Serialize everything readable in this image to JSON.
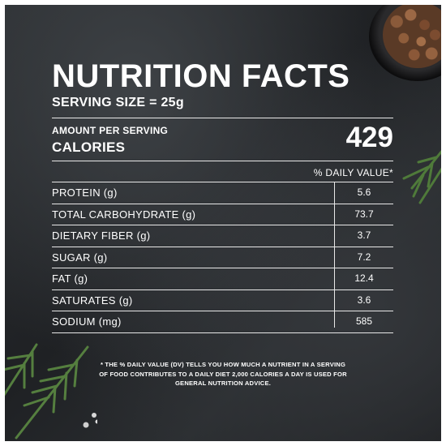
{
  "title": "NUTRITION FACTS",
  "serving_size": "SERVING SIZE = 25g",
  "amount_per_serving": "AMOUNT PER SERVING",
  "calories_label": "CALORIES",
  "calories_value": "429",
  "dv_header": "% DAILY VALUE*",
  "nutrients": [
    {
      "name": "PROTEIN (g)",
      "value": "5.6"
    },
    {
      "name": "TOTAL CARBOHYDRATE (g)",
      "value": "73.7"
    },
    {
      "name": "DIETARY FIBER (g)",
      "value": "3.7"
    },
    {
      "name": "SUGAR (g)",
      "value": "7.2"
    },
    {
      "name": "FAT (g)",
      "value": "12.4"
    },
    {
      "name": "SATURATES (g)",
      "value": "3.6"
    },
    {
      "name": "SODIUM (mg)",
      "value": "585"
    }
  ],
  "footnote": "* THE % DAILY VALUE (DV) TELLS YOU HOW MUCH A NUTRIENT IN A SERVING OF FOOD CONTRIBUTES TO A DAILY DIET 2,000 CALORIES A DAY IS USED FOR GENERAL NUTRITION ADVICE.",
  "colors": {
    "background": "#25282b",
    "text": "#ffffff",
    "rule": "#e8e8e8"
  }
}
